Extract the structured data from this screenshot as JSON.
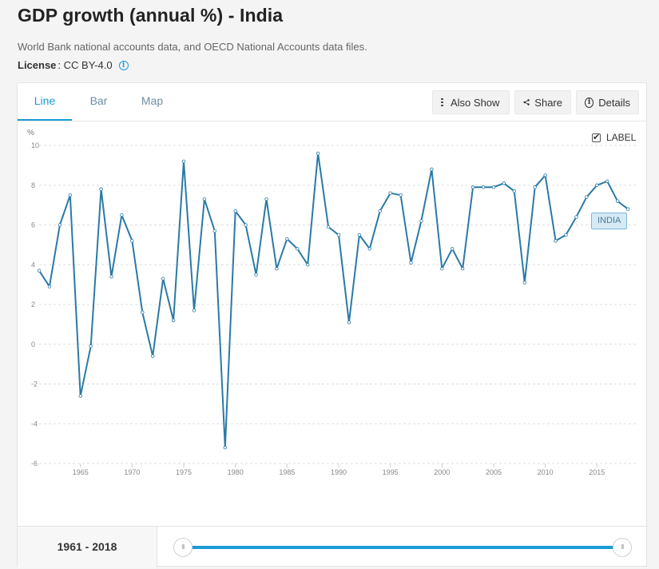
{
  "header": {
    "title": "GDP growth (annual %) - India",
    "source": "World Bank national accounts data, and OECD National Accounts data files.",
    "license_label": "License",
    "license_value": ": CC BY-4.0"
  },
  "tabs": [
    {
      "label": "Line",
      "active": true
    },
    {
      "label": "Bar",
      "active": false
    },
    {
      "label": "Map",
      "active": false
    }
  ],
  "toolbar": {
    "also_show": "Also Show",
    "share": "Share",
    "details": "Details"
  },
  "label_toggle": {
    "text": "LABEL",
    "checked": true
  },
  "range": {
    "label": "1961 - 2018",
    "start": 1961,
    "end": 2018
  },
  "colors": {
    "line": "#2a7aa6",
    "accent": "#1a9bd7",
    "tag_bg": "#d6eaf5"
  },
  "chart_data": {
    "type": "line",
    "title": "GDP growth (annual %) - India",
    "ylabel": "%",
    "xlabel": "",
    "ylim": [
      -6,
      10
    ],
    "yticks": [
      10,
      8,
      6,
      4,
      2,
      0,
      -2,
      -4,
      -6
    ],
    "xticks": [
      1965,
      1970,
      1975,
      1980,
      1985,
      1990,
      1995,
      2000,
      2005,
      2010,
      2015
    ],
    "grid": true,
    "series": [
      {
        "name": "INDIA",
        "x": [
          1961,
          1962,
          1963,
          1964,
          1965,
          1966,
          1967,
          1968,
          1969,
          1970,
          1971,
          1972,
          1973,
          1974,
          1975,
          1976,
          1977,
          1978,
          1979,
          1980,
          1981,
          1982,
          1983,
          1984,
          1985,
          1986,
          1987,
          1988,
          1989,
          1990,
          1991,
          1992,
          1993,
          1994,
          1995,
          1996,
          1997,
          1998,
          1999,
          2000,
          2001,
          2002,
          2003,
          2004,
          2005,
          2006,
          2007,
          2008,
          2009,
          2010,
          2011,
          2012,
          2013,
          2014,
          2015,
          2016,
          2017,
          2018
        ],
        "values": [
          3.7,
          2.9,
          6.0,
          7.5,
          -2.6,
          -0.1,
          7.8,
          3.4,
          6.5,
          5.2,
          1.6,
          -0.6,
          3.3,
          1.2,
          9.2,
          1.7,
          7.3,
          5.7,
          -5.2,
          6.7,
          6.0,
          3.5,
          7.3,
          3.8,
          5.3,
          4.8,
          4.0,
          9.6,
          5.9,
          5.5,
          1.1,
          5.5,
          4.8,
          6.7,
          7.6,
          7.5,
          4.1,
          6.2,
          8.8,
          3.8,
          4.8,
          3.8,
          7.9,
          7.9,
          7.9,
          8.1,
          7.7,
          3.1,
          7.9,
          8.5,
          5.2,
          5.5,
          6.4,
          7.4,
          8.0,
          8.2,
          7.2,
          6.8
        ]
      }
    ]
  }
}
